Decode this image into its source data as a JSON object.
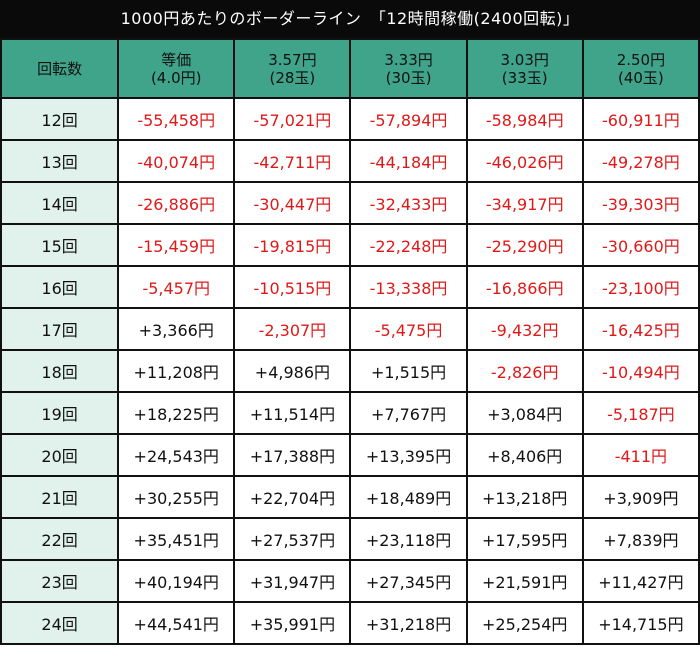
{
  "title": "1000円あたりのボーダーライン　「12時間稼働(2400回転)」",
  "colors": {
    "header_bg": "#3fa48a",
    "rowhead_bg": "#e1f1ec",
    "negative": "#e01818",
    "positive": "#111111",
    "title_bg": "#0a0a0a"
  },
  "columns": [
    {
      "line1": "回転数",
      "line2": ""
    },
    {
      "line1": "等価",
      "line2": "(4.0円)"
    },
    {
      "line1": "3.57円",
      "line2": "(28玉)"
    },
    {
      "line1": "3.33円",
      "line2": "(30玉)"
    },
    {
      "line1": "3.03円",
      "line2": "(33玉)"
    },
    {
      "line1": "2.50円",
      "line2": "(40玉)"
    }
  ],
  "rows": [
    {
      "label": "12回",
      "cells": [
        {
          "v": "-55,458円",
          "neg": true
        },
        {
          "v": "-57,021円",
          "neg": true
        },
        {
          "v": "-57,894円",
          "neg": true
        },
        {
          "v": "-58,984円",
          "neg": true
        },
        {
          "v": "-60,911円",
          "neg": true
        }
      ]
    },
    {
      "label": "13回",
      "cells": [
        {
          "v": "-40,074円",
          "neg": true
        },
        {
          "v": "-42,711円",
          "neg": true
        },
        {
          "v": "-44,184円",
          "neg": true
        },
        {
          "v": "-46,026円",
          "neg": true
        },
        {
          "v": "-49,278円",
          "neg": true
        }
      ]
    },
    {
      "label": "14回",
      "cells": [
        {
          "v": "-26,886円",
          "neg": true
        },
        {
          "v": "-30,447円",
          "neg": true
        },
        {
          "v": "-32,433円",
          "neg": true
        },
        {
          "v": "-34,917円",
          "neg": true
        },
        {
          "v": "-39,303円",
          "neg": true
        }
      ]
    },
    {
      "label": "15回",
      "cells": [
        {
          "v": "-15,459円",
          "neg": true
        },
        {
          "v": "-19,815円",
          "neg": true
        },
        {
          "v": "-22,248円",
          "neg": true
        },
        {
          "v": "-25,290円",
          "neg": true
        },
        {
          "v": "-30,660円",
          "neg": true
        }
      ]
    },
    {
      "label": "16回",
      "cells": [
        {
          "v": "-5,457円",
          "neg": true
        },
        {
          "v": "-10,515円",
          "neg": true
        },
        {
          "v": "-13,338円",
          "neg": true
        },
        {
          "v": "-16,866円",
          "neg": true
        },
        {
          "v": "-23,100円",
          "neg": true
        }
      ]
    },
    {
      "label": "17回",
      "cells": [
        {
          "v": "+3,366円",
          "neg": false
        },
        {
          "v": "-2,307円",
          "neg": true
        },
        {
          "v": "-5,475円",
          "neg": true
        },
        {
          "v": "-9,432円",
          "neg": true
        },
        {
          "v": "-16,425円",
          "neg": true
        }
      ]
    },
    {
      "label": "18回",
      "cells": [
        {
          "v": "+11,208円",
          "neg": false
        },
        {
          "v": "+4,986円",
          "neg": false
        },
        {
          "v": "+1,515円",
          "neg": false
        },
        {
          "v": "-2,826円",
          "neg": true
        },
        {
          "v": "-10,494円",
          "neg": true
        }
      ]
    },
    {
      "label": "19回",
      "cells": [
        {
          "v": "+18,225円",
          "neg": false
        },
        {
          "v": "+11,514円",
          "neg": false
        },
        {
          "v": "+7,767円",
          "neg": false
        },
        {
          "v": "+3,084円",
          "neg": false
        },
        {
          "v": "-5,187円",
          "neg": true
        }
      ]
    },
    {
      "label": "20回",
      "cells": [
        {
          "v": "+24,543円",
          "neg": false
        },
        {
          "v": "+17,388円",
          "neg": false
        },
        {
          "v": "+13,395円",
          "neg": false
        },
        {
          "v": "+8,406円",
          "neg": false
        },
        {
          "v": "-411円",
          "neg": true
        }
      ]
    },
    {
      "label": "21回",
      "cells": [
        {
          "v": "+30,255円",
          "neg": false
        },
        {
          "v": "+22,704円",
          "neg": false
        },
        {
          "v": "+18,489円",
          "neg": false
        },
        {
          "v": "+13,218円",
          "neg": false
        },
        {
          "v": "+3,909円",
          "neg": false
        }
      ]
    },
    {
      "label": "22回",
      "cells": [
        {
          "v": "+35,451円",
          "neg": false
        },
        {
          "v": "+27,537円",
          "neg": false
        },
        {
          "v": "+23,118円",
          "neg": false
        },
        {
          "v": "+17,595円",
          "neg": false
        },
        {
          "v": "+7,839円",
          "neg": false
        }
      ]
    },
    {
      "label": "23回",
      "cells": [
        {
          "v": "+40,194円",
          "neg": false
        },
        {
          "v": "+31,947円",
          "neg": false
        },
        {
          "v": "+27,345円",
          "neg": false
        },
        {
          "v": "+21,591円",
          "neg": false
        },
        {
          "v": "+11,427円",
          "neg": false
        }
      ]
    },
    {
      "label": "24回",
      "cells": [
        {
          "v": "+44,541円",
          "neg": false
        },
        {
          "v": "+35,991円",
          "neg": false
        },
        {
          "v": "+31,218円",
          "neg": false
        },
        {
          "v": "+25,254円",
          "neg": false
        },
        {
          "v": "+14,715円",
          "neg": false
        }
      ]
    }
  ]
}
